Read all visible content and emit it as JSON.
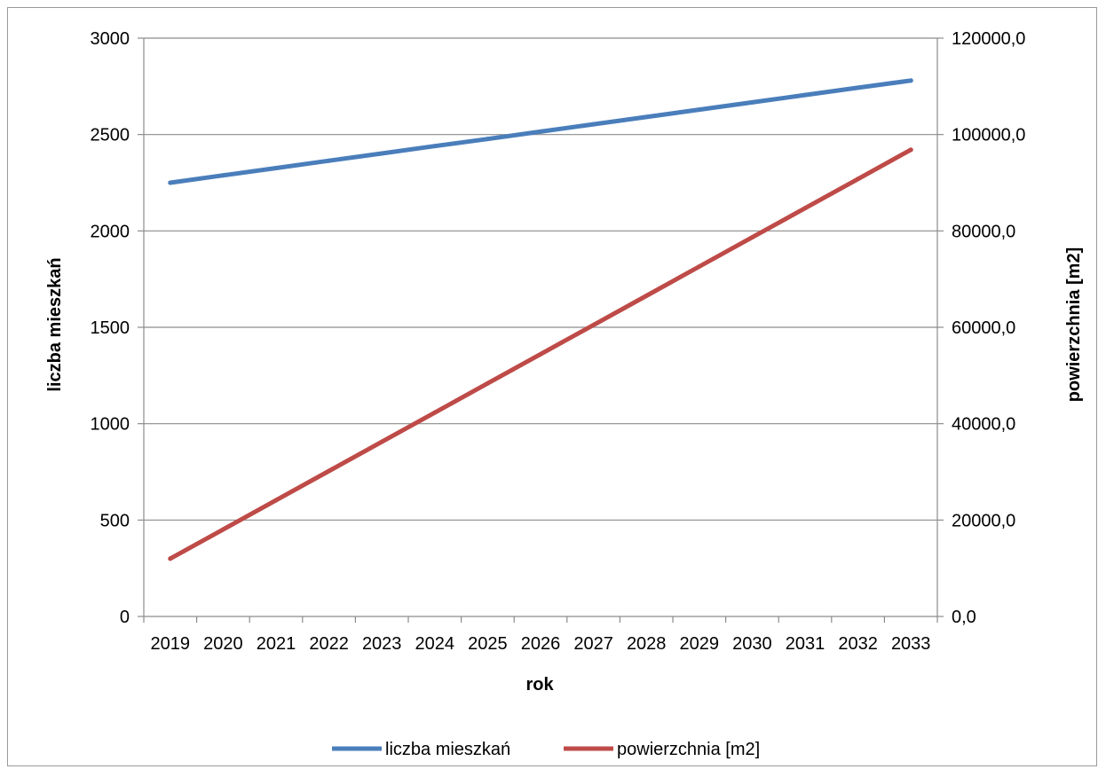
{
  "chart_data": {
    "type": "line",
    "title": "",
    "xlabel": "rok",
    "ylabel": "liczba mieszkań",
    "y2label": "powierzchnia [m2]",
    "categories": [
      "2019",
      "2020",
      "2021",
      "2022",
      "2023",
      "2024",
      "2025",
      "2026",
      "2027",
      "2028",
      "2029",
      "2030",
      "2031",
      "2032",
      "2033"
    ],
    "ylim": [
      0,
      3000
    ],
    "y2lim": [
      0,
      120000
    ],
    "yticks": [
      "0",
      "500",
      "1000",
      "1500",
      "2000",
      "2500",
      "3000"
    ],
    "y2ticks": [
      "0,0",
      "20000,0",
      "40000,0",
      "60000,0",
      "80000,0",
      "100000,0",
      "120000,0"
    ],
    "grid": true,
    "legend_position": "bottom",
    "series": [
      {
        "name": "liczba mieszkań",
        "axis": "left",
        "color": "#4a7ebb",
        "values": [
          2250,
          2288,
          2326,
          2364,
          2402,
          2440,
          2477,
          2515,
          2553,
          2591,
          2629,
          2667,
          2705,
          2743,
          2780
        ]
      },
      {
        "name": "powierzchnia [m2]",
        "axis": "right",
        "color": "#be4b48",
        "values": [
          12000,
          18060,
          24120,
          30180,
          36240,
          42300,
          48360,
          54420,
          60480,
          66540,
          72600,
          78660,
          84720,
          90780,
          96840
        ]
      }
    ]
  }
}
